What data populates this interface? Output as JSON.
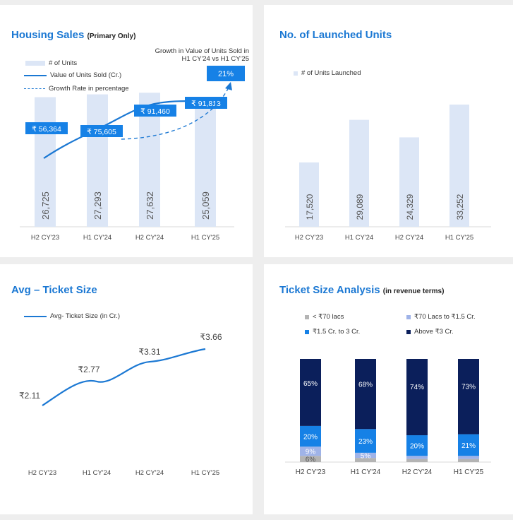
{
  "colors": {
    "bar_light": "#dce6f6",
    "line_blue": "#1b78d3",
    "callout_blue": "#1681e6",
    "navy": "#0b1f5b",
    "mid_blue": "#1681e6",
    "lavender": "#9fb3e8",
    "gray": "#b4b4b4",
    "panel_bg": "#ffffff",
    "page_bg": "#eeeeee"
  },
  "chart_data": [
    {
      "id": "housing_sales",
      "type": "bar",
      "title": "Housing Sales",
      "subtitle": "(Primary Only)",
      "categories": [
        "H2 CY'23",
        "H1 CY'24",
        "H2 CY'24",
        "H1 CY'25"
      ],
      "series": [
        {
          "name": "# of Units",
          "type": "bar",
          "values": [
            26725,
            27293,
            27632,
            25059
          ],
          "labels": [
            "26,725",
            "27,293",
            "27,632",
            "25,059"
          ]
        },
        {
          "name": "Value of Units Sold (Cr.)",
          "type": "line",
          "values": [
            56364,
            75605,
            91460,
            91813
          ],
          "labels": [
            "₹ 56,364",
            "₹ 75,605",
            "₹ 91,460",
            "₹ 91,813"
          ]
        },
        {
          "name": "Growth Rate in percentage",
          "type": "dashed-arrow"
        }
      ],
      "annotation": {
        "text": "Growth in Value of Units Sold in H1 CY'24 vs H1 CY'25",
        "value": "21%"
      },
      "legend_position": "top-left"
    },
    {
      "id": "launched_units",
      "type": "bar",
      "title": "No. of Launched Units",
      "categories": [
        "H2 CY'23",
        "H1 CY'24",
        "H2 CY'24",
        "H1 CY'25"
      ],
      "series": [
        {
          "name": "# of Units Launched",
          "values": [
            17520,
            29089,
            24329,
            33252
          ],
          "labels": [
            "17,520",
            "29,089",
            "24,329",
            "33,252"
          ]
        }
      ],
      "legend_position": "top-left"
    },
    {
      "id": "avg_ticket_size",
      "type": "line",
      "title": "Avg – Ticket Size",
      "categories": [
        "H2 CY'23",
        "H1 CY'24",
        "H2 CY'24",
        "H1 CY'25"
      ],
      "series": [
        {
          "name": "Avg- Ticket Size (in Cr.)",
          "values": [
            2.11,
            2.77,
            3.31,
            3.66
          ],
          "labels": [
            "₹2.11",
            "₹2.77",
            "₹3.31",
            "₹3.66"
          ]
        }
      ],
      "legend_position": "top-left"
    },
    {
      "id": "ticket_size_analysis",
      "type": "bar",
      "stacked": true,
      "title": "Ticket Size Analysis",
      "subtitle": "(in revenue terms)",
      "categories": [
        "H2 CY'23",
        "H1  CY'24",
        "H2 CY'24",
        "H1  CY'25"
      ],
      "series": [
        {
          "name": "< ₹70 lacs",
          "values": [
            6,
            4,
            3,
            3
          ],
          "labels": [
            "6%",
            "",
            "",
            ""
          ]
        },
        {
          "name": "₹70 Lacs to ₹1.5 Cr.",
          "values": [
            9,
            5,
            3,
            3
          ],
          "labels": [
            "9%",
            "5%",
            "",
            ""
          ]
        },
        {
          "name": "₹1.5 Cr. to 3 Cr.",
          "values": [
            20,
            23,
            20,
            21
          ],
          "labels": [
            "20%",
            "23%",
            "20%",
            "21%"
          ]
        },
        {
          "name": "Above ₹3 Cr.",
          "values": [
            65,
            68,
            74,
            73
          ],
          "labels": [
            "65%",
            "68%",
            "74%",
            "73%"
          ]
        }
      ],
      "ylim": [
        0,
        100
      ],
      "legend_position": "top"
    }
  ]
}
